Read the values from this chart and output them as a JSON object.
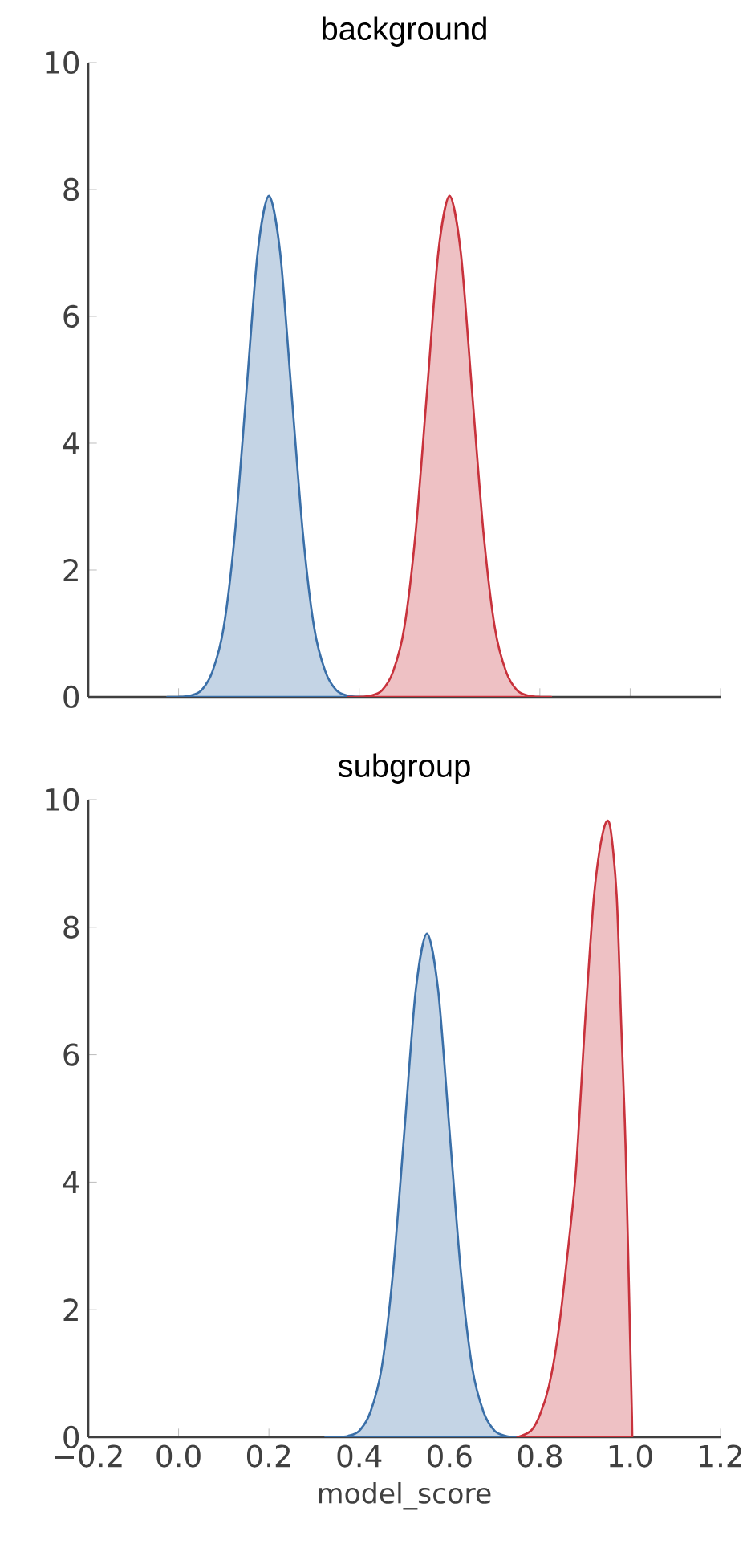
{
  "chart_data": [
    {
      "type": "area",
      "title": "background",
      "xlim": [
        -0.2,
        1.2
      ],
      "ylim": [
        0,
        10
      ],
      "xticks": [
        -0.2,
        0.0,
        0.2,
        0.4,
        0.6,
        0.8,
        1.0,
        1.2
      ],
      "yticks": [
        0,
        2,
        4,
        6,
        8,
        10
      ],
      "tick_labels": "y",
      "series": [
        {
          "color": "#3a6fa8",
          "x": [
            -0.025,
            0.0,
            0.025,
            0.05,
            0.075,
            0.1,
            0.125,
            0.15,
            0.175,
            0.2,
            0.225,
            0.25,
            0.275,
            0.3,
            0.325,
            0.35,
            0.375,
            0.4,
            0.425
          ],
          "values": [
            0,
            0,
            0.02,
            0.1,
            0.4,
            1.1,
            2.6,
            4.8,
            7.0,
            7.9,
            7.0,
            4.8,
            2.6,
            1.1,
            0.4,
            0.1,
            0.02,
            0,
            0
          ]
        },
        {
          "color": "#c8323c",
          "x": [
            0.375,
            0.4,
            0.425,
            0.45,
            0.475,
            0.5,
            0.525,
            0.55,
            0.575,
            0.6,
            0.625,
            0.65,
            0.675,
            0.7,
            0.725,
            0.75,
            0.775,
            0.8,
            0.825
          ],
          "values": [
            0,
            0,
            0.02,
            0.1,
            0.4,
            1.1,
            2.6,
            4.8,
            7.0,
            7.9,
            7.0,
            4.8,
            2.6,
            1.1,
            0.4,
            0.1,
            0.02,
            0,
            0
          ]
        }
      ]
    },
    {
      "type": "area",
      "title": "subgroup",
      "xlabel": "model_score",
      "xlim": [
        -0.2,
        1.2
      ],
      "ylim": [
        0,
        10
      ],
      "xticks": [
        {
          "value": -0.2,
          "label": "−0.2"
        },
        {
          "value": 0.0,
          "label": "0.0"
        },
        {
          "value": 0.2,
          "label": "0.2"
        },
        {
          "value": 0.4,
          "label": "0.4"
        },
        {
          "value": 0.6,
          "label": "0.6"
        },
        {
          "value": 0.8,
          "label": "0.8"
        },
        {
          "value": 1.0,
          "label": "1.0"
        },
        {
          "value": 1.2,
          "label": "1.2"
        }
      ],
      "yticks": [
        0,
        2,
        4,
        6,
        8,
        10
      ],
      "series": [
        {
          "color": "#3a6fa8",
          "x": [
            0.325,
            0.35,
            0.375,
            0.4,
            0.425,
            0.45,
            0.475,
            0.5,
            0.525,
            0.55,
            0.575,
            0.6,
            0.625,
            0.65,
            0.675,
            0.7,
            0.725,
            0.75,
            0.775
          ],
          "values": [
            0,
            0,
            0.02,
            0.1,
            0.4,
            1.1,
            2.6,
            4.8,
            7.0,
            7.9,
            7.0,
            4.8,
            2.6,
            1.1,
            0.4,
            0.1,
            0.02,
            0,
            0
          ]
        },
        {
          "color": "#c8323c",
          "x": [
            0.75,
            0.78,
            0.8,
            0.82,
            0.84,
            0.86,
            0.88,
            0.9,
            0.92,
            0.94,
            0.955,
            0.97,
            0.98,
            0.99,
            1.0,
            1.005
          ],
          "values": [
            0,
            0.1,
            0.35,
            0.8,
            1.6,
            2.8,
            4.2,
            6.5,
            8.5,
            9.5,
            9.6,
            8.5,
            6.5,
            4.5,
            1.5,
            0
          ]
        }
      ]
    }
  ]
}
